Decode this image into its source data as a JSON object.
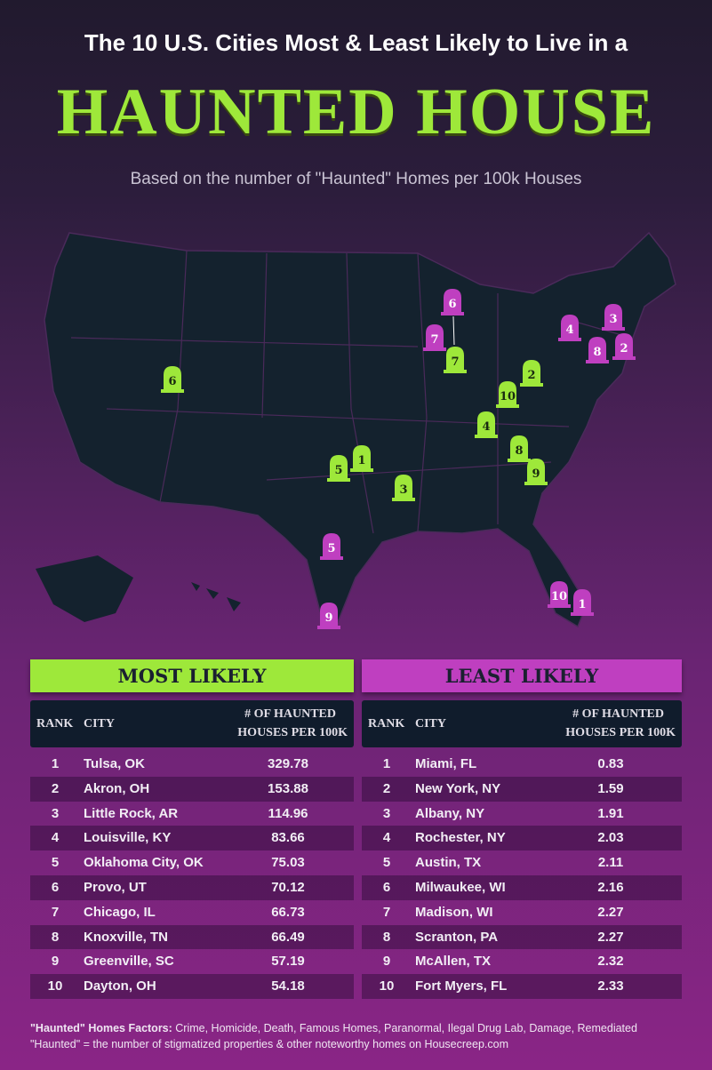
{
  "title": "The 10 U.S. Cities Most & Least Likely to Live in a",
  "headline": "HAUNTED HOUSE",
  "subtitle": "Based on the number of \"Haunted\" Homes per 100k Houses",
  "colors": {
    "most": "#9ee83a",
    "least": "#bf3fc0",
    "map": "#14222e",
    "header_dark": "#101c2c"
  },
  "map_markers": {
    "most": [
      "6",
      "1",
      "5",
      "3",
      "7",
      "2",
      "10",
      "4",
      "8",
      "9"
    ],
    "least": [
      "6",
      "7",
      "4",
      "3",
      "8",
      "2",
      "5",
      "9",
      "10",
      "1"
    ]
  },
  "most": {
    "title": "MOST LIKELY",
    "col_rank": "RANK",
    "col_city": "CITY",
    "col_value_1": "# OF HAUNTED",
    "col_value_2": "HOUSES PER 100K",
    "rows": [
      [
        "1",
        "Tulsa, OK",
        "329.78"
      ],
      [
        "2",
        "Akron, OH",
        "153.88"
      ],
      [
        "3",
        "Little Rock, AR",
        "114.96"
      ],
      [
        "4",
        "Louisville, KY",
        "83.66"
      ],
      [
        "5",
        "Oklahoma City, OK",
        "75.03"
      ],
      [
        "6",
        "Provo, UT",
        "70.12"
      ],
      [
        "7",
        "Chicago, IL",
        "66.73"
      ],
      [
        "8",
        "Knoxville, TN",
        "66.49"
      ],
      [
        "9",
        "Greenville, SC",
        "57.19"
      ],
      [
        "10",
        "Dayton, OH",
        "54.18"
      ]
    ]
  },
  "least": {
    "title": "LEAST LIKELY",
    "col_rank": "RANK",
    "col_city": "CITY",
    "col_value_1": "# OF HAUNTED",
    "col_value_2": "HOUSES PER 100K",
    "rows": [
      [
        "1",
        "Miami, FL",
        "0.83"
      ],
      [
        "2",
        "New York, NY",
        "1.59"
      ],
      [
        "3",
        "Albany, NY",
        "1.91"
      ],
      [
        "4",
        "Rochester, NY",
        "2.03"
      ],
      [
        "5",
        "Austin, TX",
        "2.11"
      ],
      [
        "6",
        "Milwaukee, WI",
        "2.16"
      ],
      [
        "7",
        "Madison, WI",
        "2.27"
      ],
      [
        "8",
        "Scranton, PA",
        "2.27"
      ],
      [
        "9",
        "McAllen, TX",
        "2.32"
      ],
      [
        "10",
        "Fort Myers, FL",
        "2.33"
      ]
    ]
  },
  "footer": {
    "factors_label": "\"Haunted\" Homes Factors:",
    "factors": " Crime, Homicide, Death, Famous Homes, Paranormal, Ilegal Drug Lab, Damage, Remediated",
    "definition": "\"Haunted\" = the number of stigmatized properties & other noteworthy homes on Housecreep.com"
  }
}
